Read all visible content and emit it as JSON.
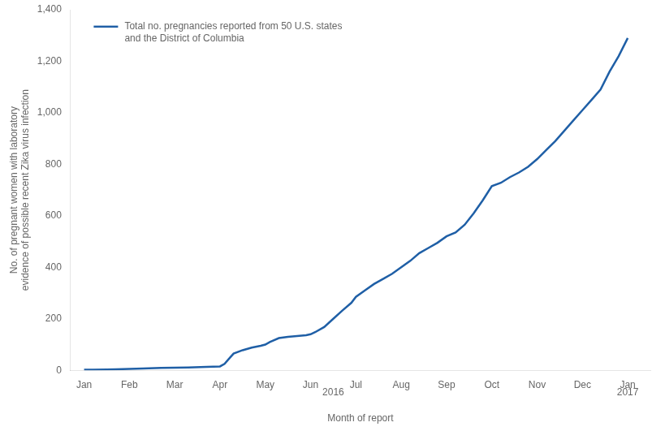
{
  "chart_data": {
    "type": "line",
    "x": [
      0,
      0.1,
      0.2,
      0.5,
      0.7,
      1.0,
      1.3,
      1.7,
      2.0,
      2.3,
      2.7,
      3.0,
      3.1,
      3.2,
      3.3,
      3.5,
      3.7,
      3.9,
      4.0,
      4.1,
      4.3,
      4.5,
      4.7,
      4.9,
      5.0,
      5.1,
      5.3,
      5.5,
      5.7,
      5.9,
      6.0,
      6.2,
      6.4,
      6.6,
      6.8,
      7.0,
      7.2,
      7.4,
      7.6,
      7.8,
      8.0,
      8.2,
      8.4,
      8.6,
      8.8,
      9.0,
      9.2,
      9.4,
      9.6,
      9.8,
      10.0,
      10.2,
      10.4,
      10.6,
      10.8,
      11.0,
      11.2,
      11.4,
      11.6,
      11.8,
      12.0
    ],
    "series": [
      {
        "name": "Total no. pregnancies reported from 50 U.S. states\nand the District of Columbia",
        "color": "#1F5FA6",
        "values": [
          2,
          2,
          2,
          3,
          4,
          5,
          7,
          9,
          10,
          11,
          13,
          15,
          25,
          45,
          65,
          78,
          88,
          95,
          100,
          110,
          125,
          130,
          133,
          136,
          140,
          148,
          168,
          200,
          232,
          262,
          285,
          310,
          335,
          355,
          375,
          400,
          425,
          455,
          475,
          495,
          520,
          535,
          565,
          610,
          660,
          715,
          728,
          750,
          768,
          790,
          820,
          855,
          890,
          930,
          970,
          1010,
          1050,
          1090,
          1160,
          1220,
          1290
        ]
      }
    ],
    "xlabel": "Month of report",
    "ylabel": "No. of pregnant women with laboratory\nevidence of possible recent Zika virus infection",
    "xlim": [
      -0.3,
      12.5
    ],
    "xticks": [
      {
        "value": 0,
        "label": "Jan"
      },
      {
        "value": 1,
        "label": "Feb"
      },
      {
        "value": 2,
        "label": "Mar"
      },
      {
        "value": 3,
        "label": "Apr"
      },
      {
        "value": 4,
        "label": "May"
      },
      {
        "value": 5,
        "label": "Jun"
      },
      {
        "value": 6,
        "label": "Jul"
      },
      {
        "value": 7,
        "label": "Aug"
      },
      {
        "value": 8,
        "label": "Sep"
      },
      {
        "value": 9,
        "label": "Oct"
      },
      {
        "value": 10,
        "label": "Nov"
      },
      {
        "value": 11,
        "label": "Dec"
      },
      {
        "value": 12,
        "label": "Jan"
      }
    ],
    "ylim": [
      0,
      1400
    ],
    "yticks": [
      0,
      200,
      400,
      600,
      800,
      {
        "value": 1000,
        "label": "1,000"
      },
      {
        "value": 1200,
        "label": "1,200"
      },
      {
        "value": 1400,
        "label": "1,400"
      }
    ],
    "grid": false,
    "legend": "upper left",
    "annotations": [
      {
        "text": "2016",
        "x": 5.5
      },
      {
        "text": "2017",
        "x": 12
      }
    ]
  }
}
